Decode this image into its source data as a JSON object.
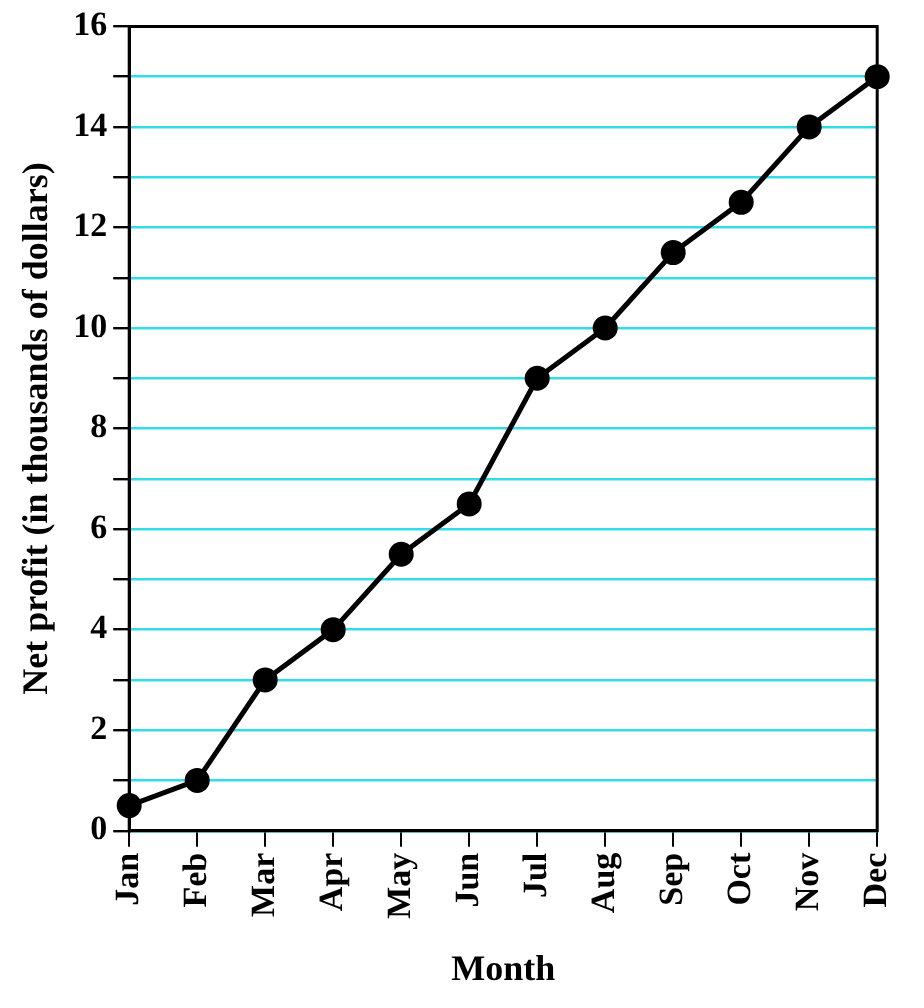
{
  "chart_data": {
    "type": "line",
    "xlabel": "Month",
    "ylabel": "Net profit (in thousands of dollars)",
    "categories": [
      "Jan",
      "Feb",
      "Mar",
      "Apr",
      "May",
      "Jun",
      "Jul",
      "Aug",
      "Sep",
      "Oct",
      "Nov",
      "Dec"
    ],
    "series": [
      {
        "color": "#000000",
        "values": [
          0.5,
          1,
          3,
          4,
          5.5,
          6.5,
          9,
          10,
          11.5,
          12.5,
          14,
          15
        ]
      }
    ],
    "ylim": [
      0,
      16
    ],
    "yticks": [
      0,
      {
        "value": 1,
        "label": null
      },
      2,
      {
        "value": 3,
        "label": null
      },
      4,
      {
        "value": 5,
        "label": null
      },
      6,
      {
        "value": 7,
        "label": null
      },
      8,
      {
        "value": 9,
        "label": null
      },
      10,
      {
        "value": 11,
        "label": null
      },
      12,
      {
        "value": 13,
        "label": null
      },
      14,
      {
        "value": 15,
        "label": null
      },
      16
    ],
    "grid": "y",
    "legend": false,
    "marker": "circle",
    "line_style": "solid"
  }
}
